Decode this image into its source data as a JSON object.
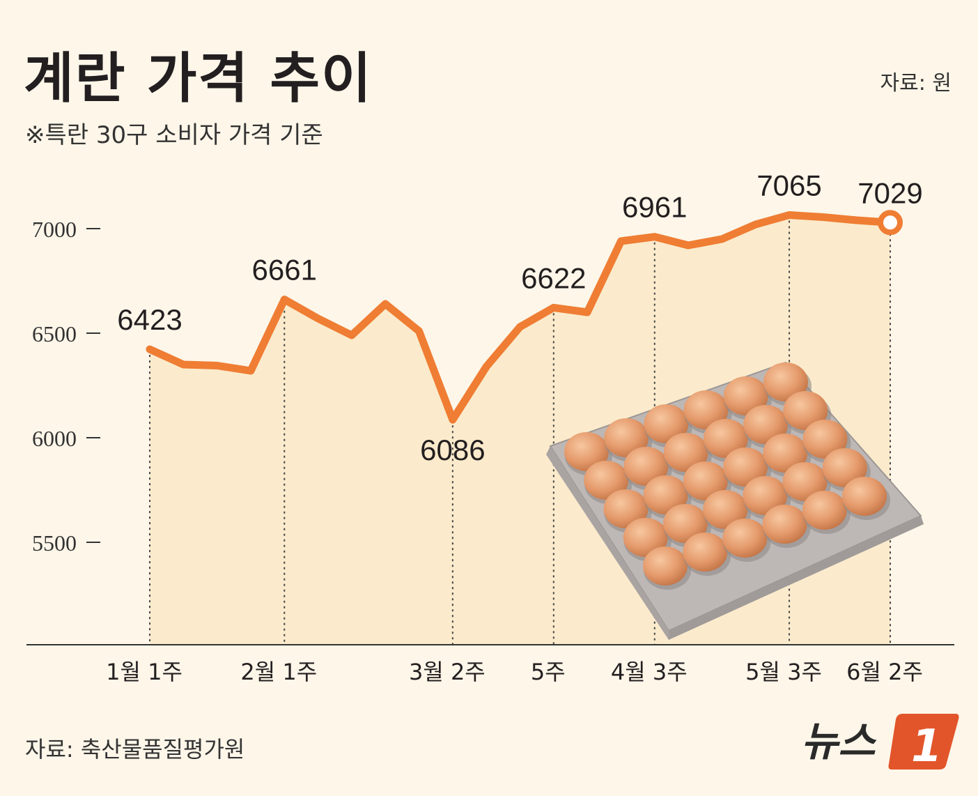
{
  "title": "계란 가격 추이",
  "subtitle": "※특란 30구 소비자 가격 기준",
  "unit_label": "자료: 원",
  "source": "자료: 축산물품질평가원",
  "brand": {
    "text": "뉴스",
    "mark": "1",
    "accent": "#e2552a"
  },
  "colors": {
    "line": "#ef7d33",
    "fill": "#fbebcc",
    "background": "#fdf6e9"
  },
  "image_icon": "egg-tray-icon",
  "chart_data": {
    "type": "line",
    "title": "계란 가격 추이",
    "ylabel": "원",
    "ylim": [
      5000,
      7200
    ],
    "yticks": [
      7000,
      6500,
      6000,
      5500
    ],
    "x_labels": [
      "1월 1주",
      "2월 1주",
      "3월 2주",
      "5주",
      "4월 3주",
      "5월 3주",
      "6월 2주"
    ],
    "series": [
      {
        "values": [
          6423,
          6350,
          6345,
          6320,
          6661,
          6570,
          6490,
          6640,
          6510,
          6086,
          6340,
          6530,
          6622,
          6600,
          6940,
          6961,
          6920,
          6950,
          7020,
          7065,
          7055,
          7040,
          7029
        ]
      }
    ],
    "labeled_points": [
      {
        "index": 0,
        "label": "6423",
        "xlabel": "1월 1주"
      },
      {
        "index": 4,
        "label": "6661",
        "xlabel": "2월 1주"
      },
      {
        "index": 9,
        "label": "6086",
        "xlabel": "3월 2주"
      },
      {
        "index": 12,
        "label": "6622",
        "xlabel": "5주"
      },
      {
        "index": 15,
        "label": "6961",
        "xlabel": "4월 3주"
      },
      {
        "index": 19,
        "label": "7065",
        "xlabel": "5월 3주"
      },
      {
        "index": 22,
        "label": "7029",
        "xlabel": "6월 2주"
      }
    ]
  }
}
